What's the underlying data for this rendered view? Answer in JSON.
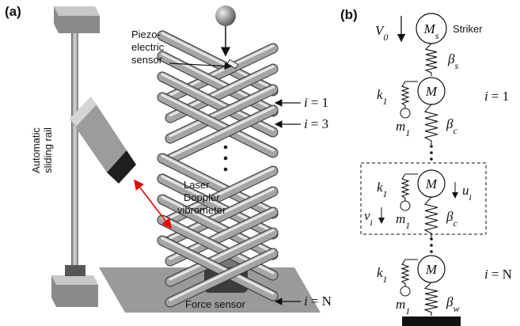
{
  "panel_a": {
    "label": "(a)",
    "rail_label": [
      "Automatic",
      "sliding rail"
    ],
    "sensor_label": [
      "Piezo-",
      "electric",
      "sensor"
    ],
    "laser_label": [
      "Laser",
      "Doppler",
      "vibrometer"
    ],
    "force_label": "Force sensor",
    "layer_labels": [
      {
        "var": "i",
        "eq": "= 1"
      },
      {
        "var": "i",
        "eq": "= 3"
      },
      {
        "var": "i",
        "eq": "= N"
      }
    ]
  },
  "panel_b": {
    "label": "(b)",
    "velocity": {
      "base": "V",
      "sub": "0"
    },
    "striker_mass": {
      "base": "M",
      "sub": "s"
    },
    "striker_label": "Striker",
    "striker_spring": {
      "base": "β",
      "sub": "s"
    },
    "nodes": [
      {
        "spring": {
          "base": "k",
          "sub": "1"
        },
        "mass": "M",
        "small_mass": {
          "base": "m",
          "sub": "1"
        },
        "coupling": {
          "base": "β",
          "sub": "c"
        },
        "index": {
          "var": "i",
          "eq": "= 1"
        }
      },
      {
        "spring": {
          "base": "k",
          "sub": "1"
        },
        "mass": "M",
        "small_mass": {
          "base": "m",
          "sub": "1"
        },
        "coupling": {
          "base": "β",
          "sub": "c"
        },
        "u": {
          "base": "u",
          "sub": "i"
        },
        "v": {
          "base": "v",
          "sub": "i"
        }
      },
      {
        "spring": {
          "base": "k",
          "sub": "1"
        },
        "mass": "M",
        "small_mass": {
          "base": "m",
          "sub": "1"
        },
        "coupling": {
          "base": "β",
          "sub": "w"
        },
        "index": {
          "var": "i",
          "eq": "= N"
        }
      }
    ]
  }
}
